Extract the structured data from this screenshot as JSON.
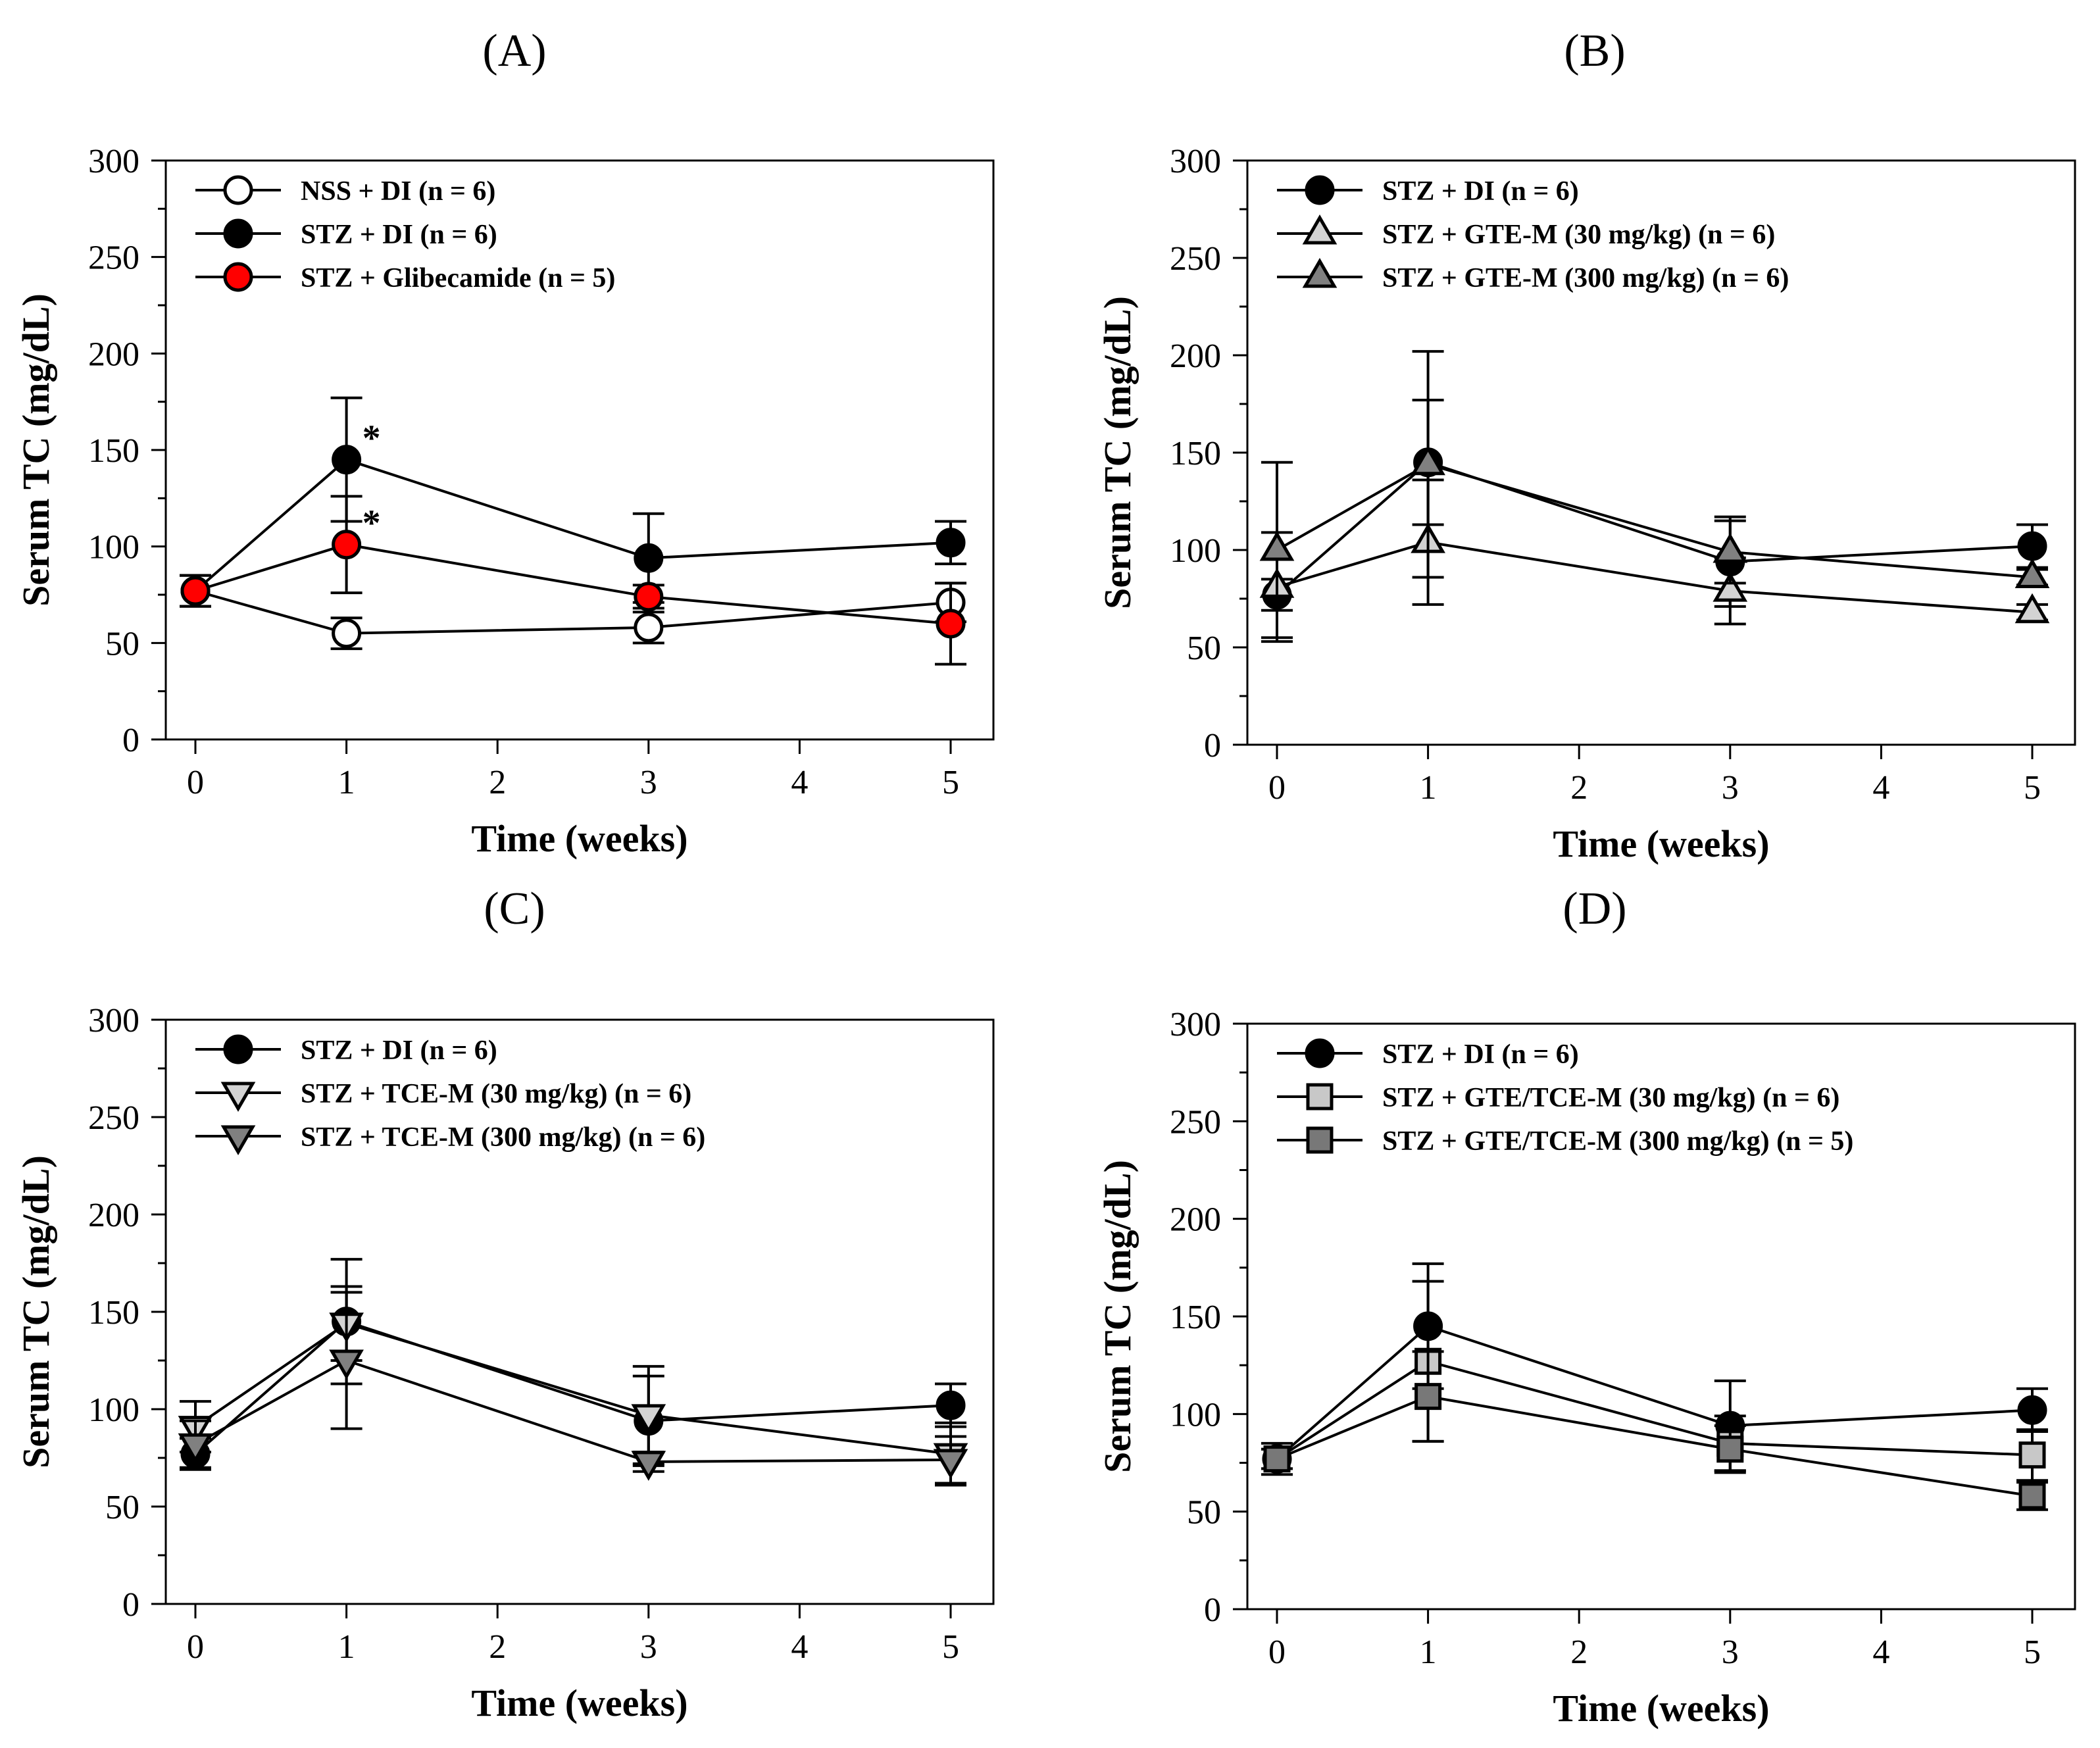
{
  "chart_data": [
    {
      "type": "line",
      "panel": "(A)",
      "xlabel": "Time (weeks)",
      "ylabel": "Serum TC (mg/dL)",
      "xlim": [
        0,
        5
      ],
      "ylim": [
        0,
        300
      ],
      "xticks": [
        0,
        1,
        2,
        3,
        4,
        5
      ],
      "yticks": [
        0,
        50,
        100,
        150,
        200,
        250,
        300
      ],
      "legend_position": "top-left",
      "series": [
        {
          "name": "NSS + DI (n = 6)",
          "marker": "circle",
          "fill": "#ffffff",
          "x": [
            0,
            1,
            3,
            5
          ],
          "y": [
            77,
            55,
            58,
            71
          ],
          "err": [
            8,
            8,
            8,
            10
          ]
        },
        {
          "name": "STZ + DI (n = 6)",
          "marker": "circle",
          "fill": "#000000",
          "x": [
            0,
            1,
            3,
            5
          ],
          "y": [
            77,
            145,
            94,
            102
          ],
          "err": [
            8,
            32,
            23,
            11
          ]
        },
        {
          "name": "STZ + Glibecamide (n = 5)",
          "marker": "circle",
          "fill": "#ff0000",
          "x": [
            0,
            1,
            3,
            5
          ],
          "y": [
            77,
            101,
            74,
            60
          ],
          "err": [
            8,
            25,
            6,
            21
          ]
        }
      ],
      "annotations": [
        {
          "text": "*",
          "x": 1,
          "y": 145
        },
        {
          "text": "*",
          "x": 1,
          "y": 101
        }
      ]
    },
    {
      "type": "line",
      "panel": "(B)",
      "xlabel": "Time (weeks)",
      "ylabel": "Serum TC (mg/dL)",
      "xlim": [
        0,
        5
      ],
      "ylim": [
        0,
        300
      ],
      "xticks": [
        0,
        1,
        2,
        3,
        4,
        5
      ],
      "yticks": [
        0,
        50,
        100,
        150,
        200,
        250,
        300
      ],
      "legend_position": "top-left",
      "series": [
        {
          "name": "STZ + DI (n = 6)",
          "marker": "circle",
          "fill": "#000000",
          "x": [
            0,
            1,
            3,
            5
          ],
          "y": [
            77,
            145,
            94,
            102
          ],
          "err": [
            8,
            32,
            23,
            11
          ]
        },
        {
          "name": "STZ + GTE-M (30 mg/kg) (n = 6)",
          "marker": "triangle-up",
          "fill": "#d3d3d3",
          "x": [
            0,
            1,
            3,
            5
          ],
          "y": [
            81,
            104,
            79,
            68
          ],
          "err": [
            28,
            32,
            17,
            4
          ]
        },
        {
          "name": "STZ + GTE-M (300 mg/kg) (n = 6)",
          "marker": "triangle-up",
          "fill": "#808080",
          "x": [
            0,
            1,
            3,
            5
          ],
          "y": [
            100,
            144,
            99,
            86
          ],
          "err": [
            45,
            58,
            16,
            4
          ]
        }
      ],
      "annotations": []
    },
    {
      "type": "line",
      "panel": "(C)",
      "xlabel": "Time (weeks)",
      "ylabel": "Serum TC (mg/dL)",
      "xlim": [
        0,
        5
      ],
      "ylim": [
        0,
        300
      ],
      "xticks": [
        0,
        1,
        2,
        3,
        4,
        5
      ],
      "yticks": [
        0,
        50,
        100,
        150,
        200,
        250,
        300
      ],
      "legend_position": "top-left",
      "series": [
        {
          "name": "STZ + DI (n = 6)",
          "marker": "circle",
          "fill": "#000000",
          "x": [
            0,
            1,
            3,
            5
          ],
          "y": [
            77,
            145,
            94,
            102
          ],
          "err": [
            8,
            32,
            23,
            11
          ]
        },
        {
          "name": "STZ + TCE-M (30 mg/kg) (n = 6)",
          "marker": "triangle-down",
          "fill": "#d3d3d3",
          "x": [
            0,
            1,
            3,
            5
          ],
          "y": [
            91,
            144,
            97,
            77
          ],
          "err": [
            13,
            19,
            25,
            16
          ]
        },
        {
          "name": "STZ + TCE-M (300 mg/kg) (n = 6)",
          "marker": "triangle-down",
          "fill": "#808080",
          "x": [
            0,
            1,
            3,
            5
          ],
          "y": [
            82,
            125,
            73,
            74
          ],
          "err": [
            12,
            35,
            5,
            12
          ]
        }
      ],
      "annotations": []
    },
    {
      "type": "line",
      "panel": "(D)",
      "xlabel": "Time (weeks)",
      "ylabel": "Serum TC (mg/dL)",
      "xlim": [
        0,
        5
      ],
      "ylim": [
        0,
        300
      ],
      "xticks": [
        0,
        1,
        2,
        3,
        4,
        5
      ],
      "yticks": [
        0,
        50,
        100,
        150,
        200,
        250,
        300
      ],
      "legend_position": "top-left",
      "series": [
        {
          "name": "STZ + DI (n = 6)",
          "marker": "circle",
          "fill": "#000000",
          "x": [
            0,
            1,
            3,
            5
          ],
          "y": [
            77,
            145,
            94,
            102
          ],
          "err": [
            8,
            32,
            23,
            11
          ]
        },
        {
          "name": "STZ + GTE/TCE-M (30 mg/kg) (n = 6)",
          "marker": "square",
          "fill": "#c8c8c8",
          "x": [
            0,
            1,
            3,
            5
          ],
          "y": [
            77,
            127,
            85,
            79
          ],
          "err": [
            5,
            41,
            14,
            13
          ]
        },
        {
          "name": "STZ + GTE/TCE-M (300 mg/kg) (n = 5)",
          "marker": "square",
          "fill": "#787878",
          "x": [
            0,
            1,
            3,
            5
          ],
          "y": [
            77,
            109,
            82,
            58
          ],
          "err": [
            5,
            23,
            12,
            7
          ]
        }
      ],
      "annotations": []
    }
  ]
}
